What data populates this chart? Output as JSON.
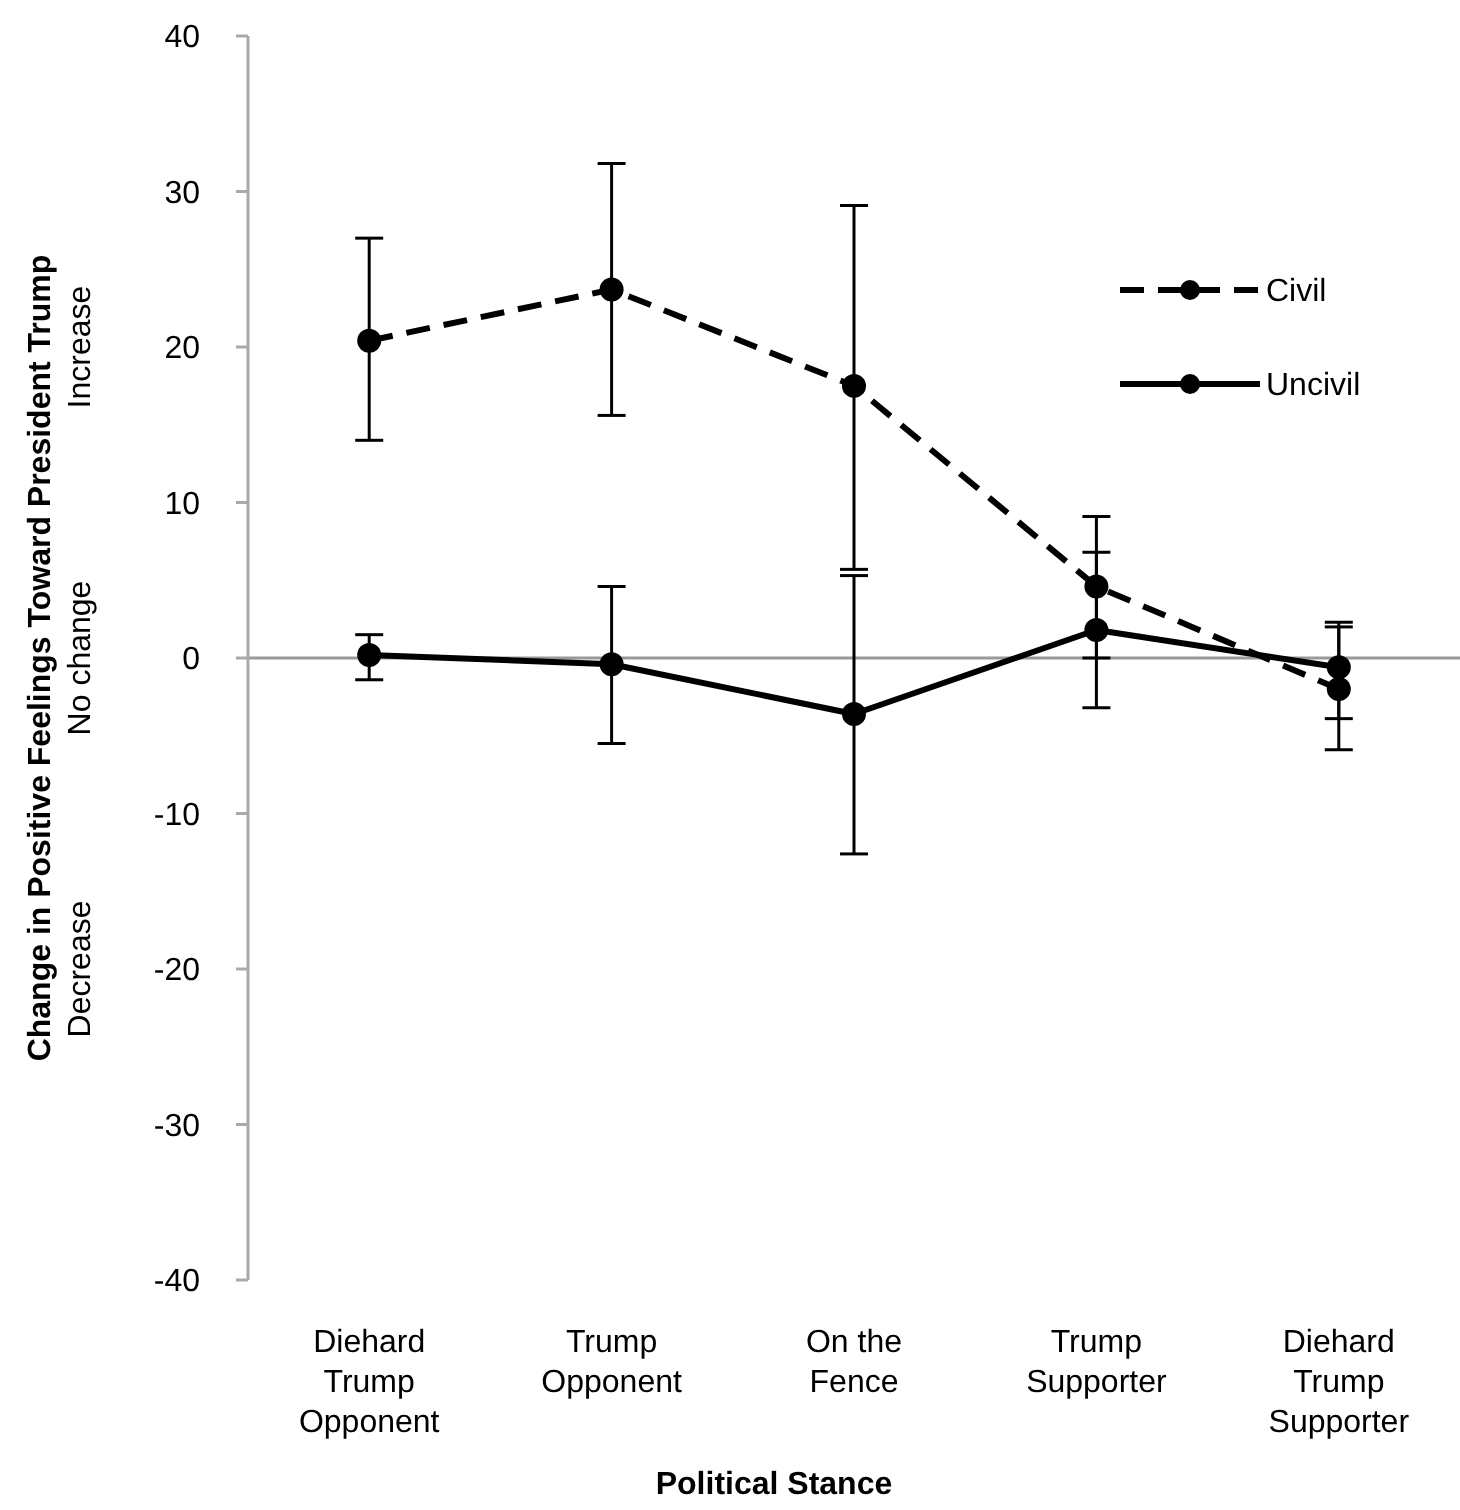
{
  "chart_data": {
    "type": "line",
    "xlabel": "Political Stance",
    "ylabel": "Change in Positive Feelings Toward President Trump",
    "categories": [
      "Diehard Trump Opponent",
      "Trump Opponent",
      "On the Fence",
      "Trump Supporter",
      "Diehard Trump Supporter"
    ],
    "ylim": [
      -40,
      40
    ],
    "yticks": [
      -40,
      -30,
      -20,
      -10,
      0,
      10,
      20,
      30,
      40
    ],
    "legend": "top right",
    "marker": "circle",
    "ref_lines": [
      {
        "axis": "y",
        "value": 0,
        "color": "#999999"
      }
    ],
    "annotations": [
      "Increase",
      "No change",
      "Decrease"
    ],
    "series": [
      {
        "name": "Civil",
        "color": "#000000",
        "line_style": "dashed",
        "values": [
          20.4,
          23.7,
          17.5,
          4.6,
          -2.0
        ],
        "errors": [
          [
            14.0,
            27.0
          ],
          [
            15.6,
            31.8
          ],
          [
            5.7,
            29.1
          ],
          [
            0.0,
            9.1
          ],
          [
            -5.9,
            2.0
          ]
        ]
      },
      {
        "name": "Uncivil",
        "color": "#000000",
        "line_style": "solid",
        "values": [
          0.2,
          -0.4,
          -3.6,
          1.8,
          -0.6
        ],
        "errors": [
          [
            -1.4,
            1.5
          ],
          [
            -5.5,
            4.6
          ],
          [
            -12.6,
            5.3
          ],
          [
            -3.2,
            6.8
          ],
          [
            -3.9,
            2.3
          ]
        ]
      }
    ]
  }
}
